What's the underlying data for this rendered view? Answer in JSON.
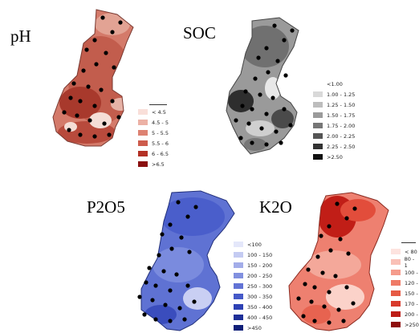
{
  "panels": [
    {
      "id": "ph",
      "title": "pH",
      "legend": [
        {
          "label": "< 4.5",
          "color": "#f9dfd9"
        },
        {
          "label": "4.5 - 5",
          "color": "#ecb1a5"
        },
        {
          "label": "5 - 5.5",
          "color": "#dd8272"
        },
        {
          "label": "5.5 - 6",
          "color": "#cd5c4c"
        },
        {
          "label": "6 - 6.5",
          "color": "#b33024"
        },
        {
          "label": ">6.5",
          "color": "#8a1010"
        }
      ]
    },
    {
      "id": "soc",
      "title": "SOC",
      "legend": [
        {
          "label": "<1.00",
          "color": "#ffffff"
        },
        {
          "label": "1.00 - 1.25",
          "color": "#d9d9d9"
        },
        {
          "label": "1.25 - 1.50",
          "color": "#bdbdbd"
        },
        {
          "label": "1.50 - 1.75",
          "color": "#9b9b9b"
        },
        {
          "label": "1.75 - 2.00",
          "color": "#777777"
        },
        {
          "label": "2.00 - 2.25",
          "color": "#555555"
        },
        {
          "label": "2.25 - 2.50",
          "color": "#333333"
        },
        {
          "label": ">2.50",
          "color": "#111111"
        }
      ]
    },
    {
      "id": "p2o5",
      "title": "P2O5",
      "legend": [
        {
          "label": "<100",
          "color": "#e4e7fa"
        },
        {
          "label": "100 - 150",
          "color": "#c4cbf2"
        },
        {
          "label": "150 - 200",
          "color": "#a3ade9"
        },
        {
          "label": "200 - 250",
          "color": "#8190df"
        },
        {
          "label": "250 - 300",
          "color": "#6273d5"
        },
        {
          "label": "300 - 350",
          "color": "#4559c8"
        },
        {
          "label": "350 - 400",
          "color": "#2d41b4"
        },
        {
          "label": "400 - 450",
          "color": "#1d2f98"
        },
        {
          "label": ">450",
          "color": "#0f1f78"
        }
      ]
    },
    {
      "id": "k2o",
      "title": "K2O",
      "legend": [
        {
          "label": "< 80",
          "color": "#fde3df"
        },
        {
          "label": "80 - 1",
          "color": "#f9c0b6"
        },
        {
          "label": "100 -",
          "color": "#f59c8c"
        },
        {
          "label": "120 -",
          "color": "#ef7a66"
        },
        {
          "label": "150 -",
          "color": "#e65a44"
        },
        {
          "label": "170 -",
          "color": "#d8392a"
        },
        {
          "label": "200 -",
          "color": "#bd1d16"
        },
        {
          "label": ">250",
          "color": "#8e0d0b"
        }
      ]
    }
  ]
}
